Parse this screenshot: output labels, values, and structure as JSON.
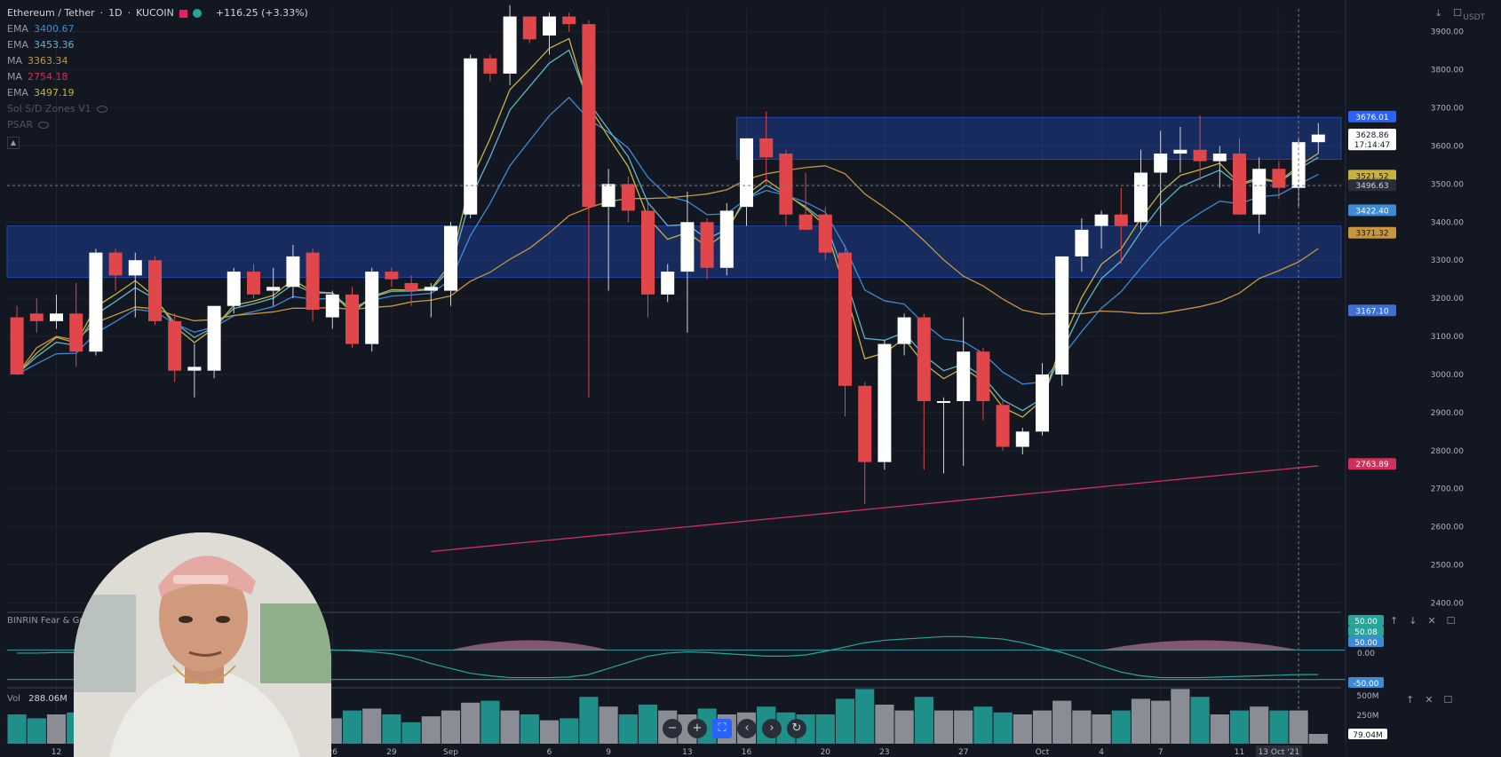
{
  "header": {
    "symbol": "Ethereum / Tether",
    "interval": "1D",
    "exchange": "KUCOIN",
    "change": "+116.25 (+3.33%)"
  },
  "indicators": [
    {
      "name": "EMA",
      "value": "3400.67",
      "color": "#3d8bd6"
    },
    {
      "name": "EMA",
      "value": "3453.36",
      "color": "#5fb4c9"
    },
    {
      "name": "MA",
      "value": "3363.34",
      "color": "#c8963c"
    },
    {
      "name": "MA",
      "value": "2754.18",
      "color": "#d0305a"
    },
    {
      "name": "EMA",
      "value": "3497.19",
      "color": "#c9b23c"
    }
  ],
  "hidden_indicators": [
    "Sol S/D Zones V1",
    "PSAR"
  ],
  "price_axis": {
    "unit": "USDT",
    "ticks": [
      "3900.00",
      "3800.00",
      "3700.00",
      "3600.00",
      "3500.00",
      "3400.00",
      "3300.00",
      "3200.00",
      "3100.00",
      "3000.00",
      "2900.00",
      "2800.00",
      "2700.00",
      "2600.00",
      "2500.00",
      "2400.00"
    ],
    "labels": [
      {
        "text": "3676.01",
        "price": 3676,
        "bg": "#2962ff",
        "fg": "#ffffff"
      },
      {
        "text": "3628.86",
        "price": 3629,
        "bg": "#ffffff",
        "fg": "#131722"
      },
      {
        "text": "17:14:47",
        "price": 3603,
        "bg": "#ffffff",
        "fg": "#131722"
      },
      {
        "text": "3521.52",
        "price": 3521,
        "bg": "#c9b23c",
        "fg": "#131722"
      },
      {
        "text": "3496.63",
        "price": 3496,
        "bg": "#2a2e39",
        "fg": "#d1d4dc"
      },
      {
        "text": "3422.40",
        "price": 3430,
        "bg": "#3d8bd6",
        "fg": "#ffffff"
      },
      {
        "text": "3371.32",
        "price": 3371,
        "bg": "#c8963c",
        "fg": "#131722"
      },
      {
        "text": "3167.10",
        "price": 3167,
        "bg": "#3d6fd6",
        "fg": "#ffffff"
      },
      {
        "text": "2763.89",
        "price": 2764,
        "bg": "#d0305a",
        "fg": "#ffffff"
      }
    ]
  },
  "time_axis": {
    "labels": [
      {
        "text": "12",
        "idx": 2
      },
      {
        "text": "26",
        "idx": 16
      },
      {
        "text": "29",
        "idx": 19
      },
      {
        "text": "Sep",
        "idx": 22
      },
      {
        "text": "6",
        "idx": 27
      },
      {
        "text": "9",
        "idx": 30
      },
      {
        "text": "13",
        "idx": 34
      },
      {
        "text": "16",
        "idx": 37
      },
      {
        "text": "20",
        "idx": 41
      },
      {
        "text": "23",
        "idx": 44
      },
      {
        "text": "27",
        "idx": 48
      },
      {
        "text": "Oct",
        "idx": 52
      },
      {
        "text": "4",
        "idx": 55
      },
      {
        "text": "7",
        "idx": 58
      },
      {
        "text": "11",
        "idx": 62
      },
      {
        "text": "13 Oct '21",
        "idx": 64
      }
    ]
  },
  "sentiment": {
    "label": "BINRIN Fear & Greed",
    "axis_labels": [
      {
        "text": "50.00",
        "bg": "#26a69a"
      },
      {
        "text": "50.08",
        "bg": "#26a69a"
      },
      {
        "text": "50.00",
        "bg": "#3d8bd6"
      },
      {
        "text": "0.00",
        "bg": ""
      },
      {
        "text": "-50.00",
        "bg": "#3d8bd6"
      }
    ]
  },
  "volume_pane": {
    "label": "Vol",
    "value": "288.06M",
    "axis_labels": [
      {
        "text": "500M",
        "bg": ""
      },
      {
        "text": "250M",
        "bg": ""
      },
      {
        "text": "79.04M",
        "bg": "#ffffff"
      }
    ]
  },
  "chart_data": {
    "type": "candlestick",
    "y_range": [
      2380,
      3960
    ],
    "candles": [
      {
        "o": 3150,
        "h": 3180,
        "l": 3000,
        "c": 3000
      },
      {
        "o": 3160,
        "h": 3200,
        "l": 3110,
        "c": 3140
      },
      {
        "o": 3140,
        "h": 3210,
        "l": 3120,
        "c": 3160
      },
      {
        "o": 3160,
        "h": 3240,
        "l": 3020,
        "c": 3060
      },
      {
        "o": 3060,
        "h": 3330,
        "l": 3050,
        "c": 3320
      },
      {
        "o": 3320,
        "h": 3330,
        "l": 3220,
        "c": 3260
      },
      {
        "o": 3260,
        "h": 3320,
        "l": 3150,
        "c": 3300
      },
      {
        "o": 3300,
        "h": 3310,
        "l": 3130,
        "c": 3140
      },
      {
        "o": 3140,
        "h": 3160,
        "l": 2980,
        "c": 3010
      },
      {
        "o": 3010,
        "h": 3080,
        "l": 2940,
        "c": 3020
      },
      {
        "o": 3010,
        "h": 3180,
        "l": 2990,
        "c": 3180
      },
      {
        "o": 3180,
        "h": 3280,
        "l": 3160,
        "c": 3270
      },
      {
        "o": 3270,
        "h": 3290,
        "l": 3200,
        "c": 3210
      },
      {
        "o": 3220,
        "h": 3280,
        "l": 3180,
        "c": 3230
      },
      {
        "o": 3230,
        "h": 3340,
        "l": 3200,
        "c": 3310
      },
      {
        "o": 3320,
        "h": 3330,
        "l": 3140,
        "c": 3170
      },
      {
        "o": 3150,
        "h": 3220,
        "l": 3120,
        "c": 3210
      },
      {
        "o": 3210,
        "h": 3230,
        "l": 3070,
        "c": 3080
      },
      {
        "o": 3080,
        "h": 3280,
        "l": 3060,
        "c": 3270
      },
      {
        "o": 3270,
        "h": 3280,
        "l": 3230,
        "c": 3250
      },
      {
        "o": 3240,
        "h": 3260,
        "l": 3180,
        "c": 3220
      },
      {
        "o": 3220,
        "h": 3240,
        "l": 3150,
        "c": 3230
      },
      {
        "o": 3220,
        "h": 3400,
        "l": 3180,
        "c": 3390
      },
      {
        "o": 3420,
        "h": 3840,
        "l": 3410,
        "c": 3830
      },
      {
        "o": 3830,
        "h": 3840,
        "l": 3770,
        "c": 3790
      },
      {
        "o": 3790,
        "h": 3970,
        "l": 3760,
        "c": 3940
      },
      {
        "o": 3940,
        "h": 3940,
        "l": 3870,
        "c": 3880
      },
      {
        "o": 3890,
        "h": 3950,
        "l": 3840,
        "c": 3940
      },
      {
        "o": 3940,
        "h": 3950,
        "l": 3900,
        "c": 3920
      },
      {
        "o": 3920,
        "h": 3930,
        "l": 2940,
        "c": 3440
      },
      {
        "o": 3440,
        "h": 3540,
        "l": 3220,
        "c": 3500
      },
      {
        "o": 3500,
        "h": 3520,
        "l": 3400,
        "c": 3430
      },
      {
        "o": 3430,
        "h": 3450,
        "l": 3150,
        "c": 3210
      },
      {
        "o": 3210,
        "h": 3290,
        "l": 3190,
        "c": 3270
      },
      {
        "o": 3270,
        "h": 3480,
        "l": 3110,
        "c": 3400
      },
      {
        "o": 3400,
        "h": 3410,
        "l": 3250,
        "c": 3280
      },
      {
        "o": 3280,
        "h": 3450,
        "l": 3260,
        "c": 3430
      },
      {
        "o": 3440,
        "h": 3620,
        "l": 3390,
        "c": 3620
      },
      {
        "o": 3620,
        "h": 3690,
        "l": 3500,
        "c": 3570
      },
      {
        "o": 3580,
        "h": 3590,
        "l": 3390,
        "c": 3420
      },
      {
        "o": 3420,
        "h": 3530,
        "l": 3380,
        "c": 3380
      },
      {
        "o": 3420,
        "h": 3440,
        "l": 3300,
        "c": 3320
      },
      {
        "o": 3320,
        "h": 3340,
        "l": 2890,
        "c": 2970
      },
      {
        "o": 2970,
        "h": 2980,
        "l": 2660,
        "c": 2770
      },
      {
        "o": 2770,
        "h": 3090,
        "l": 2750,
        "c": 3080
      },
      {
        "o": 3080,
        "h": 3160,
        "l": 3050,
        "c": 3150
      },
      {
        "o": 3150,
        "h": 3160,
        "l": 2750,
        "c": 2930
      },
      {
        "o": 2930,
        "h": 2940,
        "l": 2740,
        "c": 2930
      },
      {
        "o": 2930,
        "h": 3150,
        "l": 2760,
        "c": 3060
      },
      {
        "o": 3060,
        "h": 3070,
        "l": 2880,
        "c": 2930
      },
      {
        "o": 2920,
        "h": 2930,
        "l": 2800,
        "c": 2810
      },
      {
        "o": 2810,
        "h": 2860,
        "l": 2790,
        "c": 2850
      },
      {
        "o": 2850,
        "h": 3030,
        "l": 2840,
        "c": 3000
      },
      {
        "o": 3000,
        "h": 3310,
        "l": 2970,
        "c": 3310
      },
      {
        "o": 3310,
        "h": 3410,
        "l": 3270,
        "c": 3380
      },
      {
        "o": 3390,
        "h": 3430,
        "l": 3330,
        "c": 3420
      },
      {
        "o": 3420,
        "h": 3490,
        "l": 3290,
        "c": 3390
      },
      {
        "o": 3400,
        "h": 3590,
        "l": 3380,
        "c": 3530
      },
      {
        "o": 3530,
        "h": 3640,
        "l": 3390,
        "c": 3580
      },
      {
        "o": 3580,
        "h": 3650,
        "l": 3530,
        "c": 3590
      },
      {
        "o": 3590,
        "h": 3680,
        "l": 3510,
        "c": 3560
      },
      {
        "o": 3560,
        "h": 3600,
        "l": 3490,
        "c": 3580
      },
      {
        "o": 3580,
        "h": 3620,
        "l": 3420,
        "c": 3420
      },
      {
        "o": 3420,
        "h": 3570,
        "l": 3370,
        "c": 3540
      },
      {
        "o": 3540,
        "h": 3560,
        "l": 3460,
        "c": 3490
      },
      {
        "o": 3490,
        "h": 3620,
        "l": 3440,
        "c": 3610
      },
      {
        "o": 3610,
        "h": 3660,
        "l": 3580,
        "c": 3630
      }
    ],
    "volume": [
      0.3,
      0.26,
      0.3,
      0.32,
      0.38,
      0.3,
      0.28,
      0.34,
      0.3,
      0.28,
      0.3,
      0.26,
      0.24,
      0.28,
      0.32,
      0.3,
      0.26,
      0.34,
      0.36,
      0.3,
      0.22,
      0.28,
      0.34,
      0.42,
      0.44,
      0.34,
      0.3,
      0.24,
      0.26,
      0.48,
      0.38,
      0.3,
      0.4,
      0.34,
      0.3,
      0.36,
      0.3,
      0.32,
      0.38,
      0.32,
      0.3,
      0.3,
      0.46,
      0.56,
      0.4,
      0.34,
      0.48,
      0.34,
      0.34,
      0.38,
      0.32,
      0.3,
      0.34,
      0.44,
      0.34,
      0.3,
      0.34,
      0.46,
      0.44,
      0.56,
      0.48,
      0.3,
      0.34,
      0.38,
      0.34,
      0.34,
      0.1
    ],
    "zones": [
      {
        "top": 3675,
        "bottom": 3565,
        "start_idx": 37,
        "end_idx": 69,
        "color": "#2962ff"
      },
      {
        "top": 3390,
        "bottom": 3255,
        "start_idx": -1,
        "end_idx": 69,
        "color": "#2962ff"
      }
    ],
    "sentiment_line": [
      0.45,
      0.45,
      0.46,
      0.46,
      0.47,
      0.48,
      0.5,
      0.5,
      0.51,
      0.52,
      0.52,
      0.53,
      0.53,
      0.52,
      0.52,
      0.51,
      0.5,
      0.49,
      0.47,
      0.44,
      0.38,
      0.28,
      0.2,
      0.12,
      0.08,
      0.05,
      0.05,
      0.05,
      0.06,
      0.1,
      0.2,
      0.3,
      0.4,
      0.45,
      0.47,
      0.46,
      0.44,
      0.42,
      0.4,
      0.4,
      0.42,
      0.48,
      0.55,
      0.62,
      0.66,
      0.68,
      0.7,
      0.72,
      0.72,
      0.7,
      0.68,
      0.62,
      0.54,
      0.46,
      0.36,
      0.24,
      0.14,
      0.08,
      0.05,
      0.05,
      0.05,
      0.06,
      0.07,
      0.08,
      0.09,
      0.1,
      0.1
    ]
  }
}
